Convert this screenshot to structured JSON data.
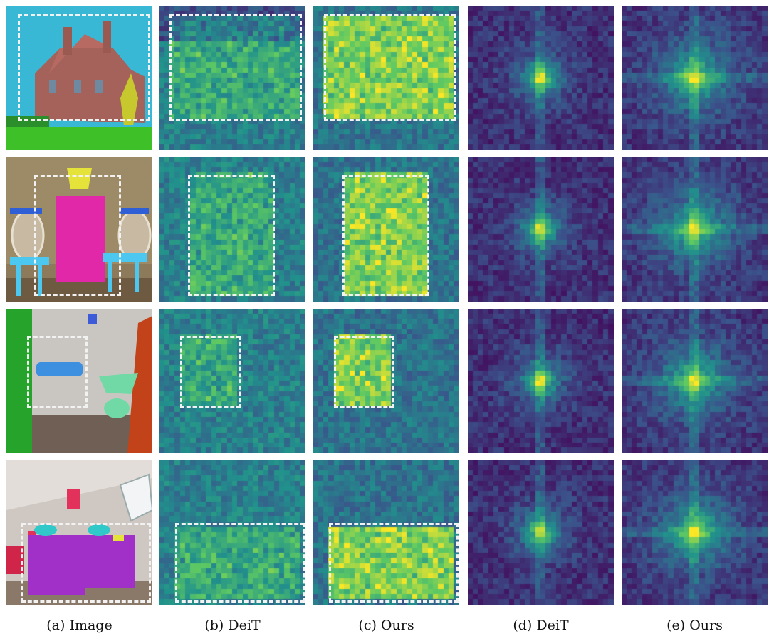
{
  "figure": {
    "columns": [
      {
        "kind": "image",
        "caption": "(a) Image"
      },
      {
        "kind": "attention",
        "caption": "(b) DeiT"
      },
      {
        "kind": "attention",
        "caption": "(c) Ours"
      },
      {
        "kind": "spectrum",
        "caption": "(d) DeiT"
      },
      {
        "kind": "spectrum",
        "caption": "(e) Ours"
      }
    ],
    "rows": [
      {
        "scene": "house",
        "image_icon": "segmented-house-exterior-image"
      },
      {
        "scene": "bathroom-double-sink",
        "image_icon": "segmented-bathroom-image"
      },
      {
        "scene": "bathroom-toilet",
        "image_icon": "segmented-restroom-image"
      },
      {
        "scene": "bedroom",
        "image_icon": "segmented-bedroom-image"
      }
    ],
    "colormap": [
      "#440154",
      "#3b528b",
      "#21918c",
      "#5ec962",
      "#fde725"
    ]
  }
}
